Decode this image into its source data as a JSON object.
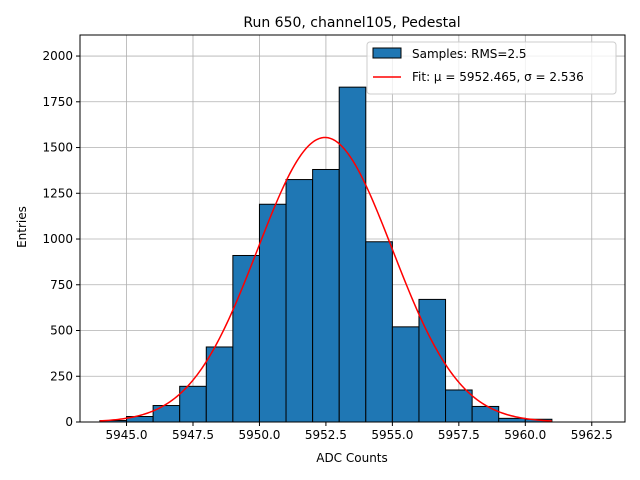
{
  "chart_data": {
    "type": "bar",
    "title": "Run 650, channel105, Pedestal",
    "xlabel": "ADC Counts",
    "ylabel": "Entries",
    "xlim": [
      5943.25,
      5963.75
    ],
    "ylim": [
      0,
      2115
    ],
    "xticks": [
      5945.0,
      5947.5,
      5950.0,
      5952.5,
      5955.0,
      5957.5,
      5960.0,
      5962.5
    ],
    "xtick_labels": [
      "5945.0",
      "5947.5",
      "5950.0",
      "5952.5",
      "5955.0",
      "5957.5",
      "5960.0",
      "5962.5"
    ],
    "yticks": [
      0,
      250,
      500,
      750,
      1000,
      1250,
      1500,
      1750,
      2000
    ],
    "ytick_labels": [
      "0",
      "250",
      "500",
      "750",
      "1000",
      "1250",
      "1500",
      "1750",
      "2000"
    ],
    "grid": true,
    "legend_position": "top-right",
    "bin_edges": [
      5944.0,
      5945.0,
      5946.0,
      5947.0,
      5948.0,
      5949.0,
      5950.0,
      5951.0,
      5952.0,
      5953.0,
      5954.0,
      5955.0,
      5956.0,
      5957.0,
      5958.0,
      5959.0,
      5960.0,
      5961.0
    ],
    "bin_values": [
      8,
      30,
      90,
      195,
      410,
      910,
      1190,
      1325,
      1380,
      1830,
      985,
      520,
      670,
      175,
      85,
      20,
      15
    ],
    "fit": {
      "mu": 5952.465,
      "sigma": 2.536,
      "amplitude": 1555,
      "x_range": [
        5944.0,
        5961.0
      ]
    },
    "series": [
      {
        "name": "Samples: RMS=2.5",
        "kind": "histogram",
        "color": "#1f77b4",
        "edgecolor": "#000000"
      },
      {
        "name": "Fit: μ = 5952.465, σ = 2.536",
        "kind": "line",
        "color": "#ff0000"
      }
    ]
  }
}
